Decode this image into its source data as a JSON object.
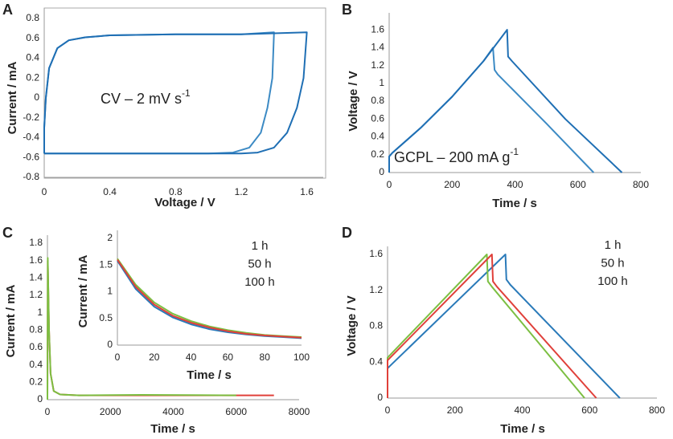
{
  "chart_data": [
    {
      "type": "line",
      "panel": "A",
      "x_label": "Voltage / V",
      "y_label": "Current / mA",
      "annotation": {
        "text": "CV – 2 mV s",
        "sup": "-1"
      },
      "xlim": [
        0,
        1.7
      ],
      "ylim": [
        -0.8,
        0.8
      ],
      "xticks": [
        0,
        0.4,
        0.8,
        1.2,
        1.6
      ],
      "yticks": [
        -0.8,
        -0.6,
        -0.4,
        -0.2,
        0,
        0.2,
        0.4,
        0.6,
        0.8
      ],
      "series": [
        {
          "color": "#3c8ac4",
          "x": [
            0,
            0,
            0.01,
            0.03,
            0.08,
            0.15,
            0.25,
            0.4,
            0.8,
            1.2,
            1.4,
            1.39,
            1.36,
            1.32,
            1.25,
            1.15,
            1.0,
            0.6,
            0.2,
            0
          ],
          "values": [
            -0.56,
            -0.3,
            0,
            0.3,
            0.5,
            0.58,
            0.61,
            0.63,
            0.64,
            0.64,
            0.66,
            0.2,
            -0.1,
            -0.35,
            -0.5,
            -0.55,
            -0.56,
            -0.56,
            -0.56,
            -0.56
          ]
        },
        {
          "color": "#1f6fb4",
          "x": [
            0,
            0,
            0.01,
            0.03,
            0.08,
            0.15,
            0.25,
            0.4,
            0.8,
            1.2,
            1.6,
            1.58,
            1.54,
            1.48,
            1.4,
            1.3,
            1.2,
            0.8,
            0.4,
            0
          ],
          "values": [
            -0.56,
            -0.3,
            0,
            0.3,
            0.5,
            0.58,
            0.61,
            0.63,
            0.64,
            0.64,
            0.66,
            0.2,
            -0.1,
            -0.35,
            -0.5,
            -0.55,
            -0.56,
            -0.56,
            -0.56,
            -0.56
          ]
        }
      ]
    },
    {
      "type": "line",
      "panel": "B",
      "x_label": "Time / s",
      "y_label": "Voltage / V",
      "annotation": {
        "text": "GCPL – 200 mA g",
        "sup": "-1"
      },
      "xlim": [
        0,
        800
      ],
      "ylim": [
        0,
        1.7
      ],
      "xticks": [
        0,
        200,
        400,
        600,
        800
      ],
      "yticks": [
        0,
        0.2,
        0.4,
        0.6,
        0.8,
        1,
        1.2,
        1.4,
        1.6
      ],
      "series": [
        {
          "color": "#3c8ac4",
          "x": [
            0,
            0,
            10,
            100,
            200,
            300,
            330,
            335,
            345,
            500,
            650
          ],
          "values": [
            0,
            0.18,
            0.22,
            0.5,
            0.85,
            1.25,
            1.4,
            1.15,
            1.1,
            0.55,
            0
          ]
        },
        {
          "color": "#1f6fb4",
          "x": [
            0,
            0,
            10,
            100,
            200,
            300,
            375,
            378,
            390,
            560,
            740
          ],
          "values": [
            0,
            0.18,
            0.22,
            0.5,
            0.85,
            1.25,
            1.6,
            1.3,
            1.25,
            0.6,
            0
          ]
        }
      ]
    },
    {
      "type": "line",
      "panel": "C",
      "x_label": "Time / s",
      "y_label": "Current / mA",
      "xlim": [
        0,
        8000
      ],
      "ylim": [
        0,
        1.8
      ],
      "xticks": [
        0,
        2000,
        4000,
        6000,
        8000
      ],
      "yticks": [
        0,
        0.2,
        0.4,
        0.6,
        0.8,
        1,
        1.2,
        1.4,
        1.6,
        1.8
      ],
      "series": [
        {
          "color": "#e0403a",
          "x": [
            0,
            10,
            50,
            100,
            200,
            400,
            1000,
            6000,
            7200
          ],
          "values": [
            0,
            1.6,
            0.8,
            0.3,
            0.1,
            0.06,
            0.05,
            0.05,
            0.05
          ]
        },
        {
          "color": "#7cbf42",
          "x": [
            0,
            10,
            50,
            100,
            200,
            400,
            1000,
            3000,
            6000
          ],
          "values": [
            0,
            1.63,
            0.8,
            0.3,
            0.1,
            0.06,
            0.05,
            0.055,
            0.05
          ]
        }
      ]
    },
    {
      "type": "line",
      "x_label": "Time / s",
      "y_label": "Current / mA",
      "xlim": [
        0,
        100
      ],
      "ylim": [
        0,
        2
      ],
      "xticks": [
        0,
        20,
        40,
        60,
        80,
        100
      ],
      "yticks": [
        0,
        0.5,
        1,
        1.5,
        2
      ],
      "series": [
        {
          "name": "1 h",
          "color": "#2a7ab9",
          "x": [
            0,
            10,
            20,
            30,
            40,
            50,
            60,
            70,
            80,
            90,
            100
          ],
          "values": [
            1.58,
            1.05,
            0.72,
            0.52,
            0.39,
            0.3,
            0.24,
            0.2,
            0.17,
            0.15,
            0.13
          ]
        },
        {
          "name": "50 h",
          "color": "#7cbf42",
          "x": [
            0,
            10,
            20,
            30,
            40,
            50,
            60,
            70,
            80,
            90,
            100
          ],
          "values": [
            1.62,
            1.13,
            0.8,
            0.59,
            0.45,
            0.35,
            0.28,
            0.23,
            0.19,
            0.17,
            0.15
          ]
        },
        {
          "name": "100 h",
          "color": "#e0403a",
          "x": [
            0,
            10,
            20,
            30,
            40,
            50,
            60,
            70,
            80,
            90,
            100
          ],
          "values": [
            1.6,
            1.09,
            0.76,
            0.55,
            0.42,
            0.33,
            0.26,
            0.21,
            0.18,
            0.16,
            0.14
          ]
        }
      ]
    },
    {
      "type": "line",
      "panel": "D",
      "x_label": "Time / s",
      "y_label": "Voltage / V",
      "xlim": [
        0,
        800
      ],
      "ylim": [
        0,
        1.6
      ],
      "xticks": [
        0,
        200,
        400,
        600,
        800
      ],
      "yticks": [
        0,
        0.4,
        0.8,
        1.2,
        1.6
      ],
      "series": [
        {
          "name": "1 h",
          "color": "#2a7ab9",
          "x": [
            0,
            0,
            5,
            350,
            353,
            365,
            690
          ],
          "values": [
            0,
            0.33,
            0.35,
            1.6,
            1.32,
            1.26,
            0
          ]
        },
        {
          "name": "50 h",
          "color": "#7cbf42",
          "x": [
            0,
            0,
            5,
            295,
            298,
            310,
            585
          ],
          "values": [
            0,
            0.45,
            0.47,
            1.6,
            1.3,
            1.24,
            0
          ]
        },
        {
          "name": "100 h",
          "color": "#e0403a",
          "x": [
            0,
            0,
            5,
            310,
            313,
            325,
            620
          ],
          "values": [
            0,
            0.42,
            0.44,
            1.6,
            1.3,
            1.24,
            0
          ]
        }
      ]
    }
  ]
}
